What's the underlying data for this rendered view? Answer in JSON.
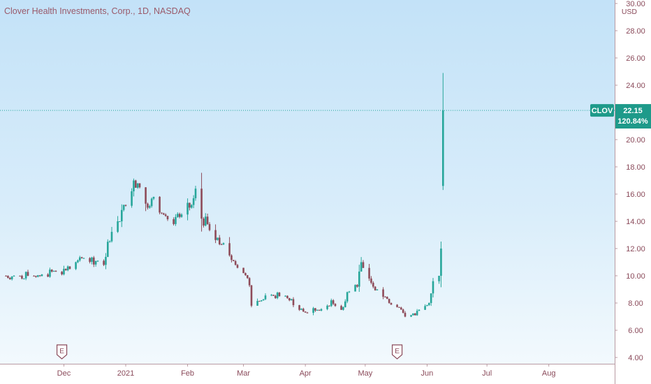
{
  "header": {
    "title": "Clover Health Investments, Corp., 1D, NASDAQ"
  },
  "colors": {
    "up": "#26a69a",
    "down": "#8e4b59",
    "axis_text": "#8a4a5a",
    "tag_bg": "#1e9a8a"
  },
  "price_tag": {
    "symbol": "CLOV",
    "price": "22.15",
    "change": "120.84%"
  },
  "chart_data": {
    "type": "candlestick",
    "title": "Clover Health Investments, Corp., 1D, NASDAQ",
    "y_unit": "USD",
    "ylim": [
      3.6,
      30.4
    ],
    "y_ticks": [
      "4.00",
      "6.00",
      "8.00",
      "10.00",
      "12.00",
      "14.00",
      "16.00",
      "18.00",
      "20.00",
      "22.00",
      "24.00",
      "26.00",
      "28.00",
      "30.00"
    ],
    "x_ticks": [
      "Dec",
      "2021",
      "Feb",
      "Mar",
      "Apr",
      "May",
      "Jun",
      "Jul",
      "Aug"
    ],
    "x_tick_dates": [
      "2020-12-01",
      "2021-01-01",
      "2021-02-01",
      "2021-03-01",
      "2021-04-01",
      "2021-05-01",
      "2021-06-01",
      "2021-07-01",
      "2021-08-01"
    ],
    "x_range": [
      "2020-10-30",
      "2021-09-03"
    ],
    "last_price": 22.15,
    "last_change_pct": "120.84%",
    "earnings_markers": [
      {
        "date": "2020-11-30",
        "label": "E"
      },
      {
        "date": "2021-05-17",
        "label": "E"
      }
    ],
    "daily_closes": [
      [
        "2020-10-30",
        10.0
      ],
      [
        "2020-11-06",
        10.0
      ],
      [
        "2020-11-13",
        10.0
      ],
      [
        "2020-11-20",
        10.1
      ],
      [
        "2020-11-27",
        10.3
      ],
      [
        "2020-12-04",
        10.5
      ],
      [
        "2020-12-11",
        11.3
      ],
      [
        "2020-12-18",
        11.1
      ],
      [
        "2020-12-21",
        10.8
      ],
      [
        "2020-12-23",
        12.5
      ],
      [
        "2020-12-28",
        14.0
      ],
      [
        "2020-12-31",
        15.2
      ],
      [
        "2021-01-05",
        17.0
      ],
      [
        "2021-01-08",
        16.5
      ],
      [
        "2021-01-12",
        15.0
      ],
      [
        "2021-01-15",
        15.8
      ],
      [
        "2021-01-20",
        14.5
      ],
      [
        "2021-01-25",
        13.8
      ],
      [
        "2021-01-29",
        14.5
      ],
      [
        "2021-02-03",
        15.2
      ],
      [
        "2021-02-05",
        16.4
      ],
      [
        "2021-02-08",
        14.2
      ],
      [
        "2021-02-11",
        13.8
      ],
      [
        "2021-02-16",
        12.8
      ],
      [
        "2021-02-18",
        12.3
      ],
      [
        "2021-02-22",
        11.5
      ],
      [
        "2021-02-25",
        10.8
      ],
      [
        "2021-03-01",
        10.2
      ],
      [
        "2021-03-04",
        9.3
      ],
      [
        "2021-03-05",
        7.8
      ],
      [
        "2021-03-10",
        8.2
      ],
      [
        "2021-03-15",
        8.6
      ],
      [
        "2021-03-19",
        8.5
      ],
      [
        "2021-03-24",
        8.2
      ],
      [
        "2021-03-29",
        7.5
      ],
      [
        "2021-04-01",
        7.3
      ],
      [
        "2021-04-07",
        7.5
      ],
      [
        "2021-04-12",
        7.8
      ],
      [
        "2021-04-14",
        8.2
      ],
      [
        "2021-04-19",
        7.5
      ],
      [
        "2021-04-22",
        8.8
      ],
      [
        "2021-04-27",
        9.2
      ],
      [
        "2021-04-29",
        11.0
      ],
      [
        "2021-05-03",
        9.8
      ],
      [
        "2021-05-07",
        9.0
      ],
      [
        "2021-05-12",
        8.3
      ],
      [
        "2021-05-17",
        7.7
      ],
      [
        "2021-05-21",
        7.0
      ],
      [
        "2021-05-26",
        7.1
      ],
      [
        "2021-05-28",
        7.5
      ],
      [
        "2021-06-02",
        8.0
      ],
      [
        "2021-06-04",
        9.6
      ],
      [
        "2021-06-07",
        10.0
      ],
      [
        "2021-06-08",
        12.0
      ],
      [
        "2021-06-09",
        22.15
      ]
    ]
  }
}
